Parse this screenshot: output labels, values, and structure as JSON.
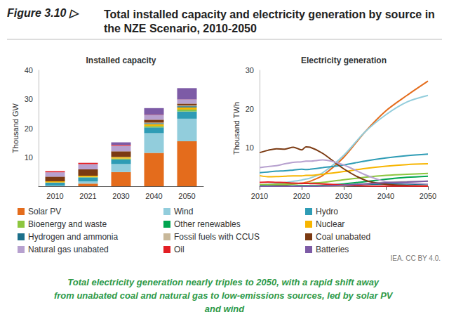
{
  "figure": {
    "label": "Figure 3.10 ▷",
    "title": "Total installed capacity and electricity generation by source in the NZE Scenario, 2010-2050",
    "caption": "Total electricity generation nearly triples to 2050, with a rapid shift away from unabated coal and natural gas to low-emissions sources, led by solar PV and wind",
    "source": "IEA. CC BY 4.0."
  },
  "chart_data": [
    {
      "type": "bar",
      "title": "Installed capacity",
      "ylabel": "Thousand GW",
      "stacked": true,
      "grid": false,
      "legend": "bottom",
      "categories": [
        "2010",
        "2021",
        "2030",
        "2040",
        "2050"
      ],
      "ylim": [
        0,
        40
      ],
      "yticks": [
        10,
        20,
        30,
        40
      ],
      "series": [
        {
          "name": "Solar PV",
          "color": "#e46c1c",
          "values": [
            0.04,
            0.9,
            4.9,
            11.5,
            15.5
          ]
        },
        {
          "name": "Wind",
          "color": "#92cddc",
          "values": [
            0.18,
            0.8,
            2.75,
            6.8,
            7.8
          ]
        },
        {
          "name": "Hydro",
          "color": "#2e9cb5",
          "values": [
            1.0,
            1.35,
            1.6,
            2.0,
            2.5
          ]
        },
        {
          "name": "Bioenergy and waste",
          "color": "#8dc63f",
          "values": [
            0.08,
            0.15,
            0.25,
            0.35,
            0.45
          ]
        },
        {
          "name": "Other renewables",
          "color": "#00a550",
          "values": [
            0.01,
            0.02,
            0.05,
            0.1,
            0.15
          ]
        },
        {
          "name": "Nuclear",
          "color": "#f7b500",
          "values": [
            0.4,
            0.41,
            0.5,
            0.7,
            0.8
          ]
        },
        {
          "name": "Hydrogen and ammonia",
          "color": "#1b6f8a",
          "values": [
            0,
            0,
            0.05,
            0.3,
            0.4
          ]
        },
        {
          "name": "Fossil fuels with CCUS",
          "color": "#c8b89a",
          "values": [
            0,
            0,
            0.05,
            0.2,
            0.3
          ]
        },
        {
          "name": "Coal unabated",
          "color": "#7b3a12",
          "values": [
            1.6,
            2.2,
            1.9,
            1.0,
            0.6
          ]
        },
        {
          "name": "Natural gas unabated",
          "color": "#b7a1cf",
          "values": [
            1.5,
            1.8,
            1.9,
            1.6,
            1.4
          ]
        },
        {
          "name": "Oil",
          "color": "#e31e24",
          "values": [
            0.4,
            0.43,
            0.3,
            0.1,
            0.05
          ]
        },
        {
          "name": "Batteries",
          "color": "#7d5ba6",
          "values": [
            0,
            0.02,
            0.9,
            2.3,
            3.9
          ]
        }
      ]
    },
    {
      "type": "line",
      "title": "Electricity generation",
      "ylabel": "Thousand TWh",
      "grid": false,
      "x": [
        2010,
        2012,
        2014,
        2016,
        2018,
        2020,
        2021,
        2022,
        2025,
        2030,
        2035,
        2040,
        2045,
        2050
      ],
      "xlim": [
        2010,
        2050
      ],
      "xticks": [
        2010,
        2020,
        2030,
        2040,
        2050
      ],
      "ylim": [
        0,
        30
      ],
      "yticks": [
        10,
        20,
        30
      ],
      "series": [
        {
          "name": "Solar PV",
          "color": "#e46c1c",
          "values": [
            0.03,
            0.1,
            0.2,
            0.3,
            0.6,
            0.8,
            1.0,
            1.3,
            2.8,
            7.5,
            14,
            19.5,
            23.5,
            27.2
          ]
        },
        {
          "name": "Wind",
          "color": "#92cddc",
          "values": [
            0.34,
            0.5,
            0.7,
            0.95,
            1.27,
            1.6,
            1.85,
            2.1,
            3.5,
            8,
            14,
            18.5,
            21.8,
            23.5
          ]
        },
        {
          "name": "Hydro",
          "color": "#2e9cb5",
          "values": [
            3.5,
            3.7,
            3.9,
            4.0,
            4.2,
            4.4,
            4.3,
            4.4,
            4.8,
            5.5,
            6.5,
            7.3,
            7.9,
            8.3
          ]
        },
        {
          "name": "Bioenergy and waste",
          "color": "#8dc63f",
          "values": [
            0.4,
            0.45,
            0.5,
            0.55,
            0.6,
            0.7,
            0.75,
            0.8,
            1.0,
            1.7,
            2.3,
            2.8,
            3.1,
            3.3
          ]
        },
        {
          "name": "Other renewables",
          "color": "#00a550",
          "values": [
            0.07,
            0.08,
            0.09,
            0.1,
            0.11,
            0.12,
            0.13,
            0.14,
            0.2,
            0.6,
            1.2,
            1.8,
            2.3,
            2.6
          ]
        },
        {
          "name": "Nuclear",
          "color": "#f7b500",
          "values": [
            2.75,
            2.45,
            2.5,
            2.6,
            2.7,
            2.7,
            2.8,
            2.8,
            3.1,
            3.8,
            4.6,
            5.2,
            5.6,
            5.8
          ]
        },
        {
          "name": "Hydrogen and ammonia",
          "color": "#1b6f8a",
          "values": [
            0,
            0,
            0,
            0,
            0,
            0,
            0,
            0,
            0,
            0.3,
            0.5,
            0.6,
            0.6,
            0.5
          ]
        },
        {
          "name": "Fossil fuels with CCUS",
          "color": "#c8b89a",
          "values": [
            0,
            0,
            0,
            0,
            0,
            0,
            0,
            0,
            0.02,
            0.1,
            0.6,
            1.0,
            1.2,
            1.3
          ]
        },
        {
          "name": "Coal unabated",
          "color": "#7b3a12",
          "values": [
            8.7,
            9.3,
            9.7,
            9.6,
            10.1,
            9.4,
            10.2,
            10.1,
            8.5,
            4.5,
            1.6,
            0.5,
            0.2,
            0.1
          ]
        },
        {
          "name": "Natural gas unabated",
          "color": "#b7a1cf",
          "values": [
            4.8,
            5.1,
            5.3,
            5.8,
            6.2,
            6.3,
            6.5,
            6.5,
            6.8,
            5.5,
            3.0,
            1.2,
            0.8,
            0.6
          ]
        },
        {
          "name": "Oil",
          "color": "#e31e24",
          "values": [
            1.0,
            1.1,
            1.0,
            0.95,
            0.8,
            0.75,
            0.75,
            0.7,
            0.6,
            0.3,
            0.1,
            0.05,
            0.03,
            0.02
          ]
        },
        {
          "name": "Batteries",
          "color": "#7d5ba6",
          "values": [
            0,
            0,
            0,
            0,
            0,
            0,
            0,
            0,
            0.05,
            0.3,
            0.6,
            0.9,
            1.1,
            1.3
          ]
        }
      ]
    }
  ]
}
